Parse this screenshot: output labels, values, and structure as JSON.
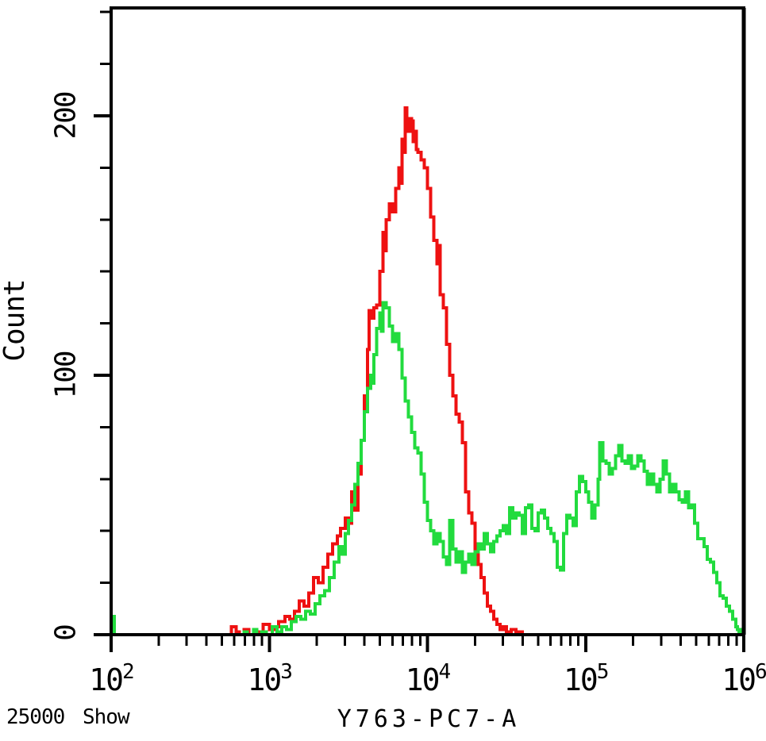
{
  "window": {
    "background": "#ffffff"
  },
  "footer": {
    "event_count": "25000",
    "show_label": "Show"
  },
  "chart_data": {
    "type": "line",
    "subtype": "flow-cytometry-step-histogram-overlay",
    "title": "",
    "xlabel": "Y763-PC7-A",
    "ylabel": "Count",
    "x_scale": "log10",
    "xlim_log10": [
      2,
      6
    ],
    "ylim": [
      0,
      242
    ],
    "grid": false,
    "legend_position": "none",
    "frame": true,
    "y_ticks": [
      0,
      100,
      200
    ],
    "y_tick_labels": [
      "0",
      "100",
      "200"
    ],
    "y_minor_tick_step": 20,
    "x_tick_base": "10",
    "x_tick_exponents": [
      "2",
      "3",
      "4",
      "5",
      "6"
    ],
    "x_minor_ticks": "log multiples 2-9 per decade",
    "axis_color": "#000000",
    "series": [
      {
        "name": "red-histogram",
        "color": "#ee1111",
        "points_log10x_count": [
          [
            2.7,
            0
          ],
          [
            2.74,
            0
          ],
          [
            2.76,
            3
          ],
          [
            2.79,
            1
          ],
          [
            2.81,
            0
          ],
          [
            2.84,
            2
          ],
          [
            2.87,
            0
          ],
          [
            2.9,
            1
          ],
          [
            2.93,
            0
          ],
          [
            2.96,
            4
          ],
          [
            3.0,
            2
          ],
          [
            3.03,
            3
          ],
          [
            3.06,
            5
          ],
          [
            3.1,
            7
          ],
          [
            3.13,
            6
          ],
          [
            3.16,
            9
          ],
          [
            3.19,
            13
          ],
          [
            3.22,
            11
          ],
          [
            3.25,
            16
          ],
          [
            3.28,
            22
          ],
          [
            3.31,
            20
          ],
          [
            3.34,
            26
          ],
          [
            3.37,
            31
          ],
          [
            3.4,
            35
          ],
          [
            3.43,
            38
          ],
          [
            3.45,
            41
          ],
          [
            3.48,
            45
          ],
          [
            3.5,
            43
          ],
          [
            3.52,
            55
          ],
          [
            3.54,
            48
          ],
          [
            3.56,
            62
          ],
          [
            3.58,
            75
          ],
          [
            3.6,
            92
          ],
          [
            3.62,
            110
          ],
          [
            3.63,
            125
          ],
          [
            3.65,
            122
          ],
          [
            3.66,
            126
          ],
          [
            3.68,
            127
          ],
          [
            3.7,
            140
          ],
          [
            3.72,
            155
          ],
          [
            3.73,
            148
          ],
          [
            3.74,
            160
          ],
          [
            3.76,
            166
          ],
          [
            3.78,
            163
          ],
          [
            3.8,
            172
          ],
          [
            3.82,
            180
          ],
          [
            3.83,
            174
          ],
          [
            3.84,
            191
          ],
          [
            3.85,
            186
          ],
          [
            3.86,
            203
          ],
          [
            3.87,
            196
          ],
          [
            3.88,
            194
          ],
          [
            3.89,
            199
          ],
          [
            3.9,
            198
          ],
          [
            3.91,
            190
          ],
          [
            3.92,
            194
          ],
          [
            3.93,
            187
          ],
          [
            3.94,
            186
          ],
          [
            3.96,
            183
          ],
          [
            3.98,
            180
          ],
          [
            4.0,
            172
          ],
          [
            4.02,
            161
          ],
          [
            4.04,
            152
          ],
          [
            4.06,
            143
          ],
          [
            4.07,
            150
          ],
          [
            4.08,
            131
          ],
          [
            4.1,
            126
          ],
          [
            4.12,
            112
          ],
          [
            4.14,
            100
          ],
          [
            4.16,
            92
          ],
          [
            4.18,
            85
          ],
          [
            4.2,
            82
          ],
          [
            4.22,
            74
          ],
          [
            4.24,
            55
          ],
          [
            4.26,
            47
          ],
          [
            4.28,
            43
          ],
          [
            4.3,
            33
          ],
          [
            4.32,
            27
          ],
          [
            4.34,
            22
          ],
          [
            4.36,
            16
          ],
          [
            4.38,
            11
          ],
          [
            4.4,
            9
          ],
          [
            4.42,
            6
          ],
          [
            4.44,
            4
          ],
          [
            4.46,
            2
          ],
          [
            4.48,
            3
          ],
          [
            4.5,
            1
          ],
          [
            4.53,
            2
          ],
          [
            4.56,
            1
          ],
          [
            4.6,
            0
          ]
        ]
      },
      {
        "name": "green-histogram",
        "color": "#22db3e",
        "points_log10x_count": [
          [
            2.0,
            7
          ],
          [
            2.02,
            0
          ],
          [
            2.8,
            0
          ],
          [
            2.84,
            1
          ],
          [
            2.86,
            0
          ],
          [
            2.9,
            2
          ],
          [
            2.92,
            0
          ],
          [
            2.95,
            1
          ],
          [
            2.98,
            0
          ],
          [
            3.02,
            3
          ],
          [
            3.05,
            1
          ],
          [
            3.08,
            3
          ],
          [
            3.11,
            2
          ],
          [
            3.14,
            5
          ],
          [
            3.17,
            7
          ],
          [
            3.2,
            6
          ],
          [
            3.23,
            9
          ],
          [
            3.26,
            8
          ],
          [
            3.29,
            12
          ],
          [
            3.32,
            15
          ],
          [
            3.35,
            17
          ],
          [
            3.38,
            22
          ],
          [
            3.41,
            28
          ],
          [
            3.44,
            34
          ],
          [
            3.46,
            31
          ],
          [
            3.48,
            39
          ],
          [
            3.5,
            44
          ],
          [
            3.52,
            50
          ],
          [
            3.54,
            58
          ],
          [
            3.56,
            66
          ],
          [
            3.58,
            75
          ],
          [
            3.6,
            86
          ],
          [
            3.62,
            95
          ],
          [
            3.64,
            100
          ],
          [
            3.65,
            97
          ],
          [
            3.66,
            108
          ],
          [
            3.68,
            118
          ],
          [
            3.7,
            124
          ],
          [
            3.71,
            117
          ],
          [
            3.72,
            128
          ],
          [
            3.74,
            126
          ],
          [
            3.76,
            119
          ],
          [
            3.78,
            113
          ],
          [
            3.8,
            116
          ],
          [
            3.82,
            110
          ],
          [
            3.84,
            99
          ],
          [
            3.86,
            90
          ],
          [
            3.88,
            84
          ],
          [
            3.9,
            78
          ],
          [
            3.92,
            72
          ],
          [
            3.94,
            70
          ],
          [
            3.96,
            62
          ],
          [
            3.98,
            51
          ],
          [
            4.0,
            44
          ],
          [
            4.02,
            40
          ],
          [
            4.04,
            35
          ],
          [
            4.06,
            39
          ],
          [
            4.08,
            36
          ],
          [
            4.1,
            30
          ],
          [
            4.12,
            27
          ],
          [
            4.14,
            44
          ],
          [
            4.16,
            33
          ],
          [
            4.18,
            28
          ],
          [
            4.2,
            32
          ],
          [
            4.22,
            24
          ],
          [
            4.24,
            28
          ],
          [
            4.26,
            31
          ],
          [
            4.28,
            27
          ],
          [
            4.3,
            32
          ],
          [
            4.32,
            35
          ],
          [
            4.34,
            33
          ],
          [
            4.36,
            39
          ],
          [
            4.38,
            35
          ],
          [
            4.4,
            32
          ],
          [
            4.42,
            36
          ],
          [
            4.44,
            38
          ],
          [
            4.46,
            40
          ],
          [
            4.48,
            42
          ],
          [
            4.5,
            39
          ],
          [
            4.52,
            49
          ],
          [
            4.54,
            45
          ],
          [
            4.56,
            47
          ],
          [
            4.58,
            46
          ],
          [
            4.6,
            39
          ],
          [
            4.62,
            49
          ],
          [
            4.64,
            50
          ],
          [
            4.66,
            41
          ],
          [
            4.68,
            40
          ],
          [
            4.7,
            47
          ],
          [
            4.72,
            48
          ],
          [
            4.74,
            45
          ],
          [
            4.76,
            41
          ],
          [
            4.78,
            39
          ],
          [
            4.8,
            36
          ],
          [
            4.82,
            26
          ],
          [
            4.84,
            25
          ],
          [
            4.86,
            39
          ],
          [
            4.88,
            46
          ],
          [
            4.9,
            45
          ],
          [
            4.92,
            42
          ],
          [
            4.94,
            55
          ],
          [
            4.96,
            61
          ],
          [
            4.98,
            59
          ],
          [
            5.0,
            55
          ],
          [
            5.02,
            51
          ],
          [
            5.04,
            45
          ],
          [
            5.06,
            50
          ],
          [
            5.08,
            60
          ],
          [
            5.09,
            74
          ],
          [
            5.11,
            67
          ],
          [
            5.13,
            66
          ],
          [
            5.15,
            62
          ],
          [
            5.17,
            64
          ],
          [
            5.19,
            69
          ],
          [
            5.21,
            73
          ],
          [
            5.23,
            67
          ],
          [
            5.25,
            66
          ],
          [
            5.27,
            69
          ],
          [
            5.29,
            64
          ],
          [
            5.31,
            65
          ],
          [
            5.33,
            69
          ],
          [
            5.35,
            67
          ],
          [
            5.37,
            63
          ],
          [
            5.39,
            58
          ],
          [
            5.41,
            62
          ],
          [
            5.43,
            58
          ],
          [
            5.45,
            55
          ],
          [
            5.47,
            60
          ],
          [
            5.49,
            67
          ],
          [
            5.51,
            62
          ],
          [
            5.53,
            55
          ],
          [
            5.55,
            58
          ],
          [
            5.57,
            55
          ],
          [
            5.59,
            52
          ],
          [
            5.61,
            51
          ],
          [
            5.63,
            55
          ],
          [
            5.65,
            49
          ],
          [
            5.67,
            50
          ],
          [
            5.69,
            43
          ],
          [
            5.71,
            37
          ],
          [
            5.73,
            37
          ],
          [
            5.75,
            34
          ],
          [
            5.77,
            29
          ],
          [
            5.79,
            28
          ],
          [
            5.81,
            24
          ],
          [
            5.83,
            20
          ],
          [
            5.85,
            15
          ],
          [
            5.87,
            14
          ],
          [
            5.89,
            11
          ],
          [
            5.91,
            9
          ],
          [
            5.93,
            6
          ],
          [
            5.95,
            3
          ],
          [
            5.96,
            2
          ],
          [
            5.97,
            1
          ],
          [
            5.98,
            2
          ],
          [
            5.99,
            0
          ],
          [
            6.0,
            1
          ]
        ]
      }
    ]
  }
}
